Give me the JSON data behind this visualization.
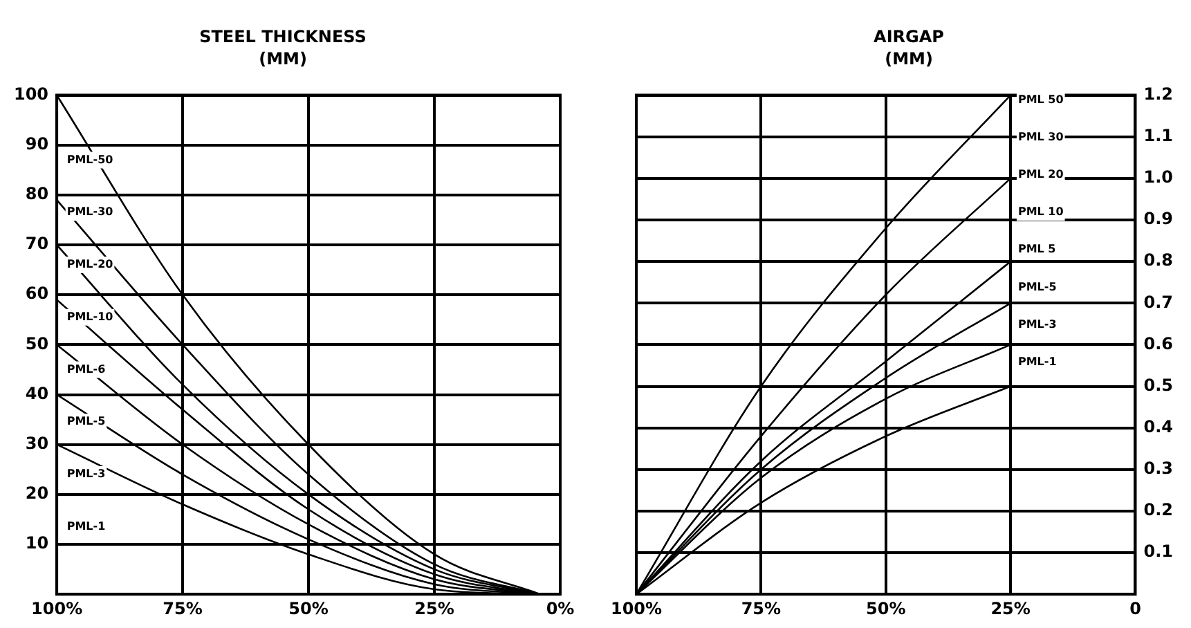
{
  "chart_data": [
    {
      "type": "line",
      "title": "STEEL THICKNESS",
      "subtitle": "(MM)",
      "xlim": [
        100,
        0
      ],
      "xticks": [
        {
          "value": 100,
          "label": "100%"
        },
        {
          "value": 75,
          "label": "75%"
        },
        {
          "value": 50,
          "label": "50%"
        },
        {
          "value": 25,
          "label": "25%"
        },
        {
          "value": 0,
          "label": "0%"
        }
      ],
      "ylim": [
        0,
        100
      ],
      "yticks": [
        10,
        20,
        30,
        40,
        50,
        60,
        70,
        80,
        90,
        100
      ],
      "grid": true,
      "legend": false,
      "marker": "none",
      "line_style": "solid",
      "series": [
        {
          "color": "#000000",
          "x": [
            100,
            75,
            50,
            25,
            4
          ],
          "values": [
            100,
            60,
            30,
            8,
            0
          ]
        },
        {
          "color": "#000000",
          "x": [
            100,
            75,
            50,
            25,
            4
          ],
          "values": [
            79,
            50,
            24,
            6,
            0
          ]
        },
        {
          "color": "#000000",
          "x": [
            100,
            75,
            50,
            25,
            4
          ],
          "values": [
            70,
            42,
            20,
            5,
            0
          ]
        },
        {
          "color": "#000000",
          "x": [
            100,
            75,
            50,
            25,
            4
          ],
          "values": [
            59,
            37,
            17,
            4,
            0
          ]
        },
        {
          "color": "#000000",
          "x": [
            100,
            75,
            50,
            25,
            4
          ],
          "values": [
            50,
            30,
            14,
            3,
            0
          ]
        },
        {
          "color": "#000000",
          "x": [
            100,
            75,
            50,
            25,
            4
          ],
          "values": [
            40,
            24,
            11,
            2,
            0
          ]
        },
        {
          "color": "#000000",
          "x": [
            100,
            75,
            50,
            25,
            4
          ],
          "values": [
            30,
            18,
            8,
            1,
            0
          ]
        }
      ],
      "annotations": [
        "PML-50",
        "PML-30",
        "PML-20",
        "PML-10",
        "PML-6",
        "PML-5",
        "PML-3",
        "PML-1"
      ]
    },
    {
      "type": "line",
      "title": "AIRGAP",
      "subtitle": "(MM)",
      "xlim": [
        100,
        0
      ],
      "xticks": [
        {
          "value": 100,
          "label": "100%"
        },
        {
          "value": 75,
          "label": "75%"
        },
        {
          "value": 50,
          "label": "50%"
        },
        {
          "value": 25,
          "label": "25%"
        },
        0
      ],
      "y2lim": [
        0,
        1.2
      ],
      "y2ticks": [
        {
          "value": 0,
          "label": null
        },
        0.1,
        0.2,
        0.3,
        0.4,
        0.5,
        0.6,
        0.7,
        0.8,
        0.9,
        {
          "value": 1,
          "label": "1.0"
        },
        1.1,
        1.2
      ],
      "grid": true,
      "legend": false,
      "marker": "none",
      "line_style": "solid",
      "series": [
        {
          "color": "#000000",
          "axis": "y2",
          "x": [
            100,
            75,
            50,
            25
          ],
          "values": [
            0,
            0.5,
            0.88,
            1.2
          ]
        },
        {
          "color": "#000000",
          "axis": "y2",
          "x": [
            100,
            75,
            50,
            25
          ],
          "values": [
            0,
            0.38,
            0.72,
            1.0
          ]
        },
        {
          "color": "#000000",
          "axis": "y2",
          "x": [
            100,
            75,
            50,
            25
          ],
          "values": [
            0,
            0.32,
            0.56,
            0.8
          ]
        },
        {
          "color": "#000000",
          "axis": "y2",
          "x": [
            100,
            75,
            50,
            25
          ],
          "values": [
            0,
            0.3,
            0.52,
            0.7
          ]
        },
        {
          "color": "#000000",
          "axis": "y2",
          "x": [
            100,
            75,
            50,
            25
          ],
          "values": [
            0,
            0.28,
            0.47,
            0.6
          ]
        },
        {
          "color": "#000000",
          "axis": "y2",
          "x": [
            100,
            75,
            50,
            25
          ],
          "values": [
            0,
            0.22,
            0.38,
            0.5
          ]
        }
      ],
      "annotations": [
        "PML 50",
        "PML 30",
        "PML 20",
        "PML 10",
        "PML 5",
        "PML-5",
        "PML-3",
        "PML-1"
      ]
    }
  ]
}
